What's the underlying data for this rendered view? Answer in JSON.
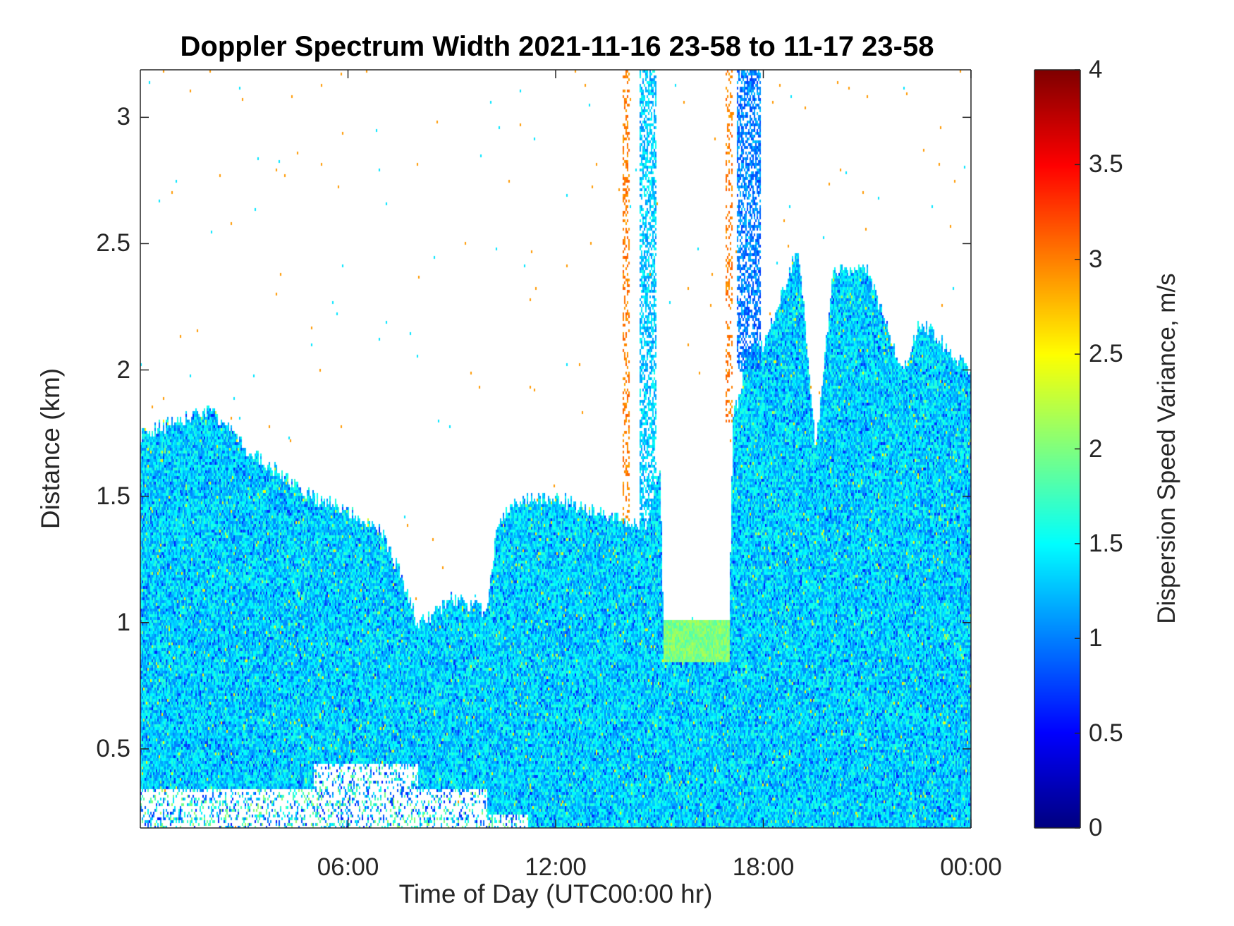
{
  "chart_data": {
    "type": "heatmap",
    "title": "Doppler Spectrum Width 2021-11-16 23-58 to 11-17 23-58",
    "xlabel": "Time of Day (UTC00:00 hr)",
    "ylabel": "Distance (km)",
    "colorbar_label": "Dispersion Speed Variance, m/s",
    "colormap": "jet",
    "xlim_hours": [
      0,
      24
    ],
    "ylim": [
      0.187,
      3.188
    ],
    "clim": [
      0,
      4
    ],
    "x_ticks": [
      {
        "hour": 6,
        "label": "06:00"
      },
      {
        "hour": 12,
        "label": "12:00"
      },
      {
        "hour": 18,
        "label": "18:00"
      },
      {
        "hour": 24,
        "label": "00:00"
      }
    ],
    "y_ticks": [
      {
        "value": 0.5,
        "label": "0.5"
      },
      {
        "value": 1,
        "label": "1"
      },
      {
        "value": 1.5,
        "label": "1.5"
      },
      {
        "value": 2,
        "label": "2"
      },
      {
        "value": 2.5,
        "label": "2.5"
      },
      {
        "value": 3,
        "label": "3"
      }
    ],
    "c_ticks": [
      {
        "value": 0,
        "label": "0"
      },
      {
        "value": 0.5,
        "label": "0.5"
      },
      {
        "value": 1,
        "label": "1"
      },
      {
        "value": 1.5,
        "label": "1.5"
      },
      {
        "value": 2,
        "label": "2"
      },
      {
        "value": 2.5,
        "label": "2.5"
      },
      {
        "value": 3,
        "label": "3"
      },
      {
        "value": 3.5,
        "label": "3.5"
      },
      {
        "value": 4,
        "label": "4"
      }
    ],
    "echo_top_km": {
      "hours": [
        0,
        1,
        2,
        3,
        4,
        5,
        6,
        7,
        7.5,
        8,
        9,
        10,
        10.3,
        11,
        12,
        13,
        14,
        14.6,
        15,
        15.1,
        17,
        17.1,
        17.6,
        18,
        19,
        19.5,
        20,
        21,
        22,
        22.5,
        24
      ],
      "top": [
        1.75,
        1.8,
        1.85,
        1.7,
        1.6,
        1.5,
        1.45,
        1.35,
        1.2,
        1.0,
        1.1,
        1.05,
        1.4,
        1.5,
        1.5,
        1.45,
        1.4,
        1.4,
        1.6,
        1.0,
        1.0,
        1.8,
        2.1,
        2.1,
        2.5,
        1.7,
        2.4,
        2.4,
        2.0,
        2.2,
        2.0
      ]
    },
    "typical_value": 1.35,
    "features": [
      {
        "hours": [
          15.1,
          17.0
        ],
        "km": [
          0.85,
          1.02
        ],
        "value": 2.0
      },
      {
        "hours": [
          13.9,
          14.1
        ],
        "km": [
          1.4,
          3.188
        ],
        "value": 3.0
      },
      {
        "hours": [
          16.9,
          17.1
        ],
        "km": [
          1.8,
          3.188
        ],
        "value": 3.0
      },
      {
        "hours": [
          14.4,
          14.9
        ],
        "km": [
          1.4,
          3.188
        ],
        "value": 1.3
      },
      {
        "hours": [
          17.2,
          17.9
        ],
        "km": [
          2.0,
          3.188
        ],
        "value": 1.0
      }
    ]
  }
}
